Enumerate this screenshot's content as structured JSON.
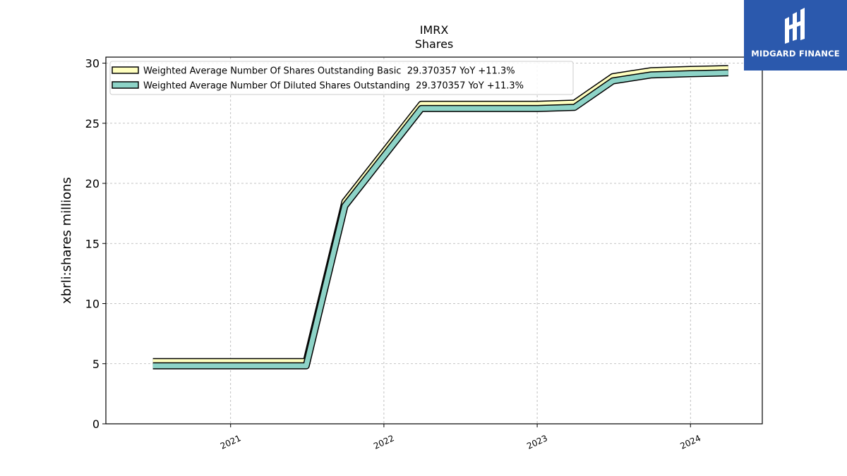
{
  "chart_data": {
    "type": "line",
    "title": "IMRX",
    "subtitle": "Shares",
    "xlabel": "",
    "ylabel": "xbrli:shares millions",
    "xlim": [
      "2020-03-10",
      "2024-06-20"
    ],
    "ylim": [
      0,
      30.5
    ],
    "x_ticks": [
      "2021",
      "2022",
      "2023",
      "2024"
    ],
    "y_ticks": [
      0,
      5,
      10,
      15,
      20,
      25,
      30
    ],
    "grid": true,
    "legend_position": "top-left",
    "x": [
      "2020-06-30",
      "2020-09-30",
      "2020-12-31",
      "2021-03-31",
      "2021-06-30",
      "2021-09-30",
      "2022-03-31",
      "2022-06-30",
      "2022-09-30",
      "2022-12-31",
      "2023-03-31",
      "2023-06-30",
      "2023-09-30",
      "2023-12-31",
      "2024-03-31"
    ],
    "series": [
      {
        "name": "Weighted Average Number Of Shares Outstanding Basic  29.370357 YoY +11.3%",
        "color": "#ffffbf",
        "values": [
          5.0,
          5.0,
          5.0,
          5.0,
          5.0,
          18.3,
          26.4,
          26.4,
          26.4,
          26.4,
          26.5,
          28.7,
          29.2,
          29.3,
          29.37
        ]
      },
      {
        "name": "Weighted Average Number Of Diluted Shares Outstanding  29.370357 YoY +11.3%",
        "color": "#8dd3c7",
        "values": [
          5.0,
          5.0,
          5.0,
          5.0,
          5.0,
          18.3,
          26.4,
          26.4,
          26.4,
          26.4,
          26.5,
          28.7,
          29.2,
          29.3,
          29.37
        ]
      }
    ]
  },
  "logo": {
    "text": "MIDGARD FINANCE",
    "background": "#2b59ad"
  }
}
